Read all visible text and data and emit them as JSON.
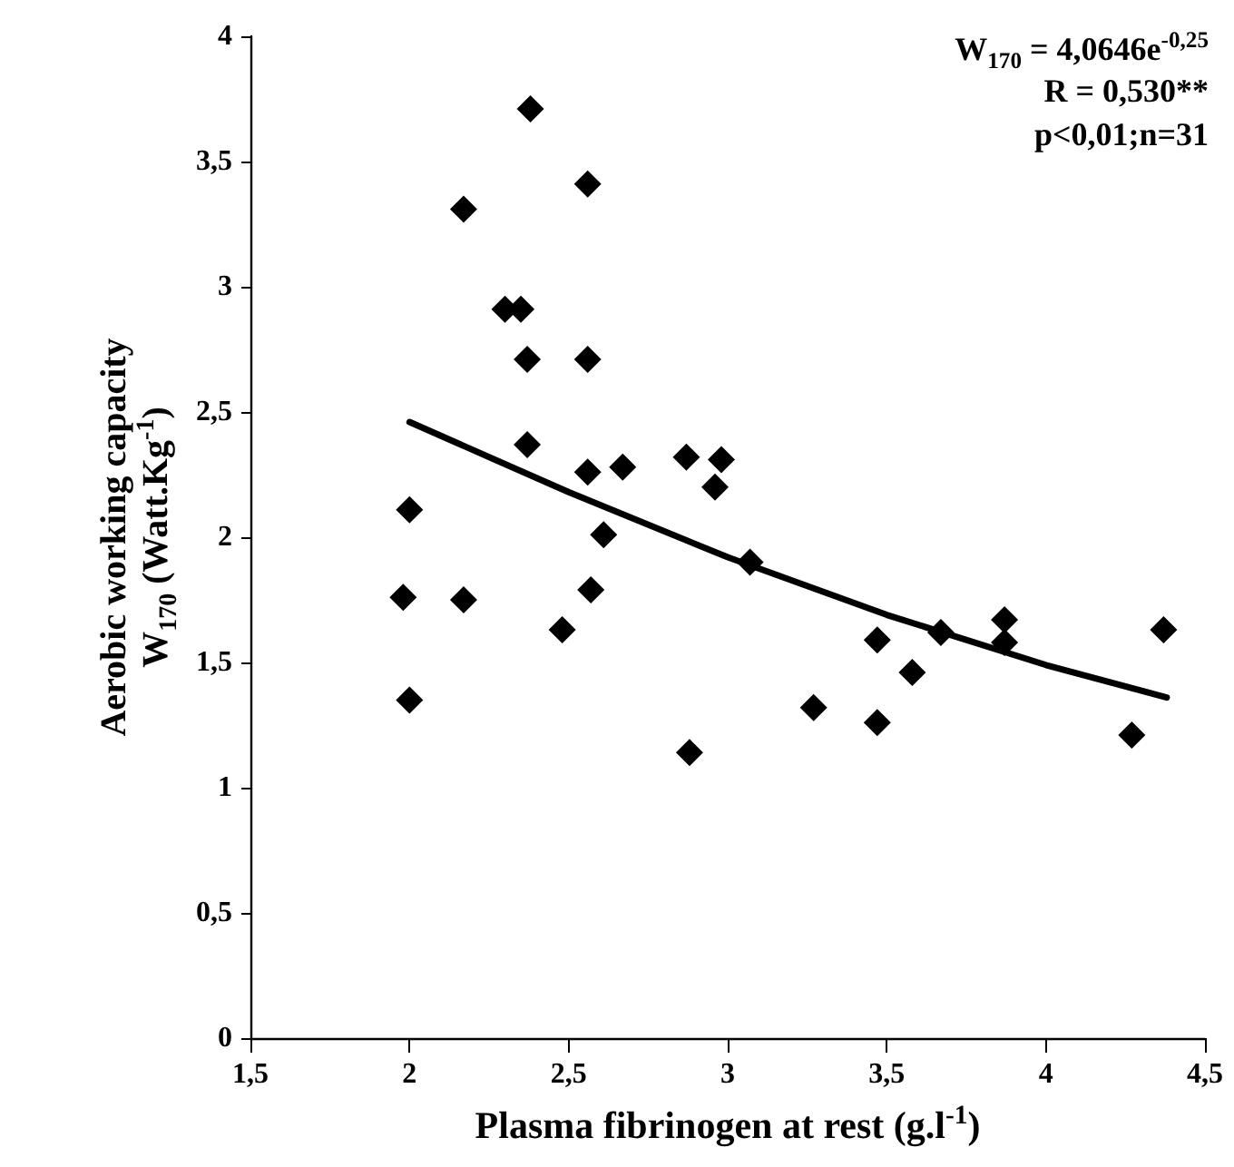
{
  "chart_data": {
    "type": "scatter",
    "xlabel": "Plasma fibrinogen at rest (g.l$^{-1}$)",
    "ylabel": "Aerobic working capacity\nW$_{170}$ (Watt.Kg$^{-1}$)",
    "annotations": [
      "W$_{170}$ = 4,0646e$^{-0,25}$\nR = 0,530**\np<0,01;n=31"
    ],
    "xlim": [
      1.5,
      4.5
    ],
    "xticks": [
      {
        "value": 1.5,
        "label": "1,5"
      },
      2,
      {
        "value": 2.5,
        "label": "2,5"
      },
      3,
      {
        "value": 3.5,
        "label": "3,5"
      },
      4,
      {
        "value": 4.5,
        "label": "4,5"
      }
    ],
    "ylim": [
      0,
      4
    ],
    "yticks": [
      0,
      {
        "value": 0.5,
        "label": "0,5"
      },
      1,
      {
        "value": 1.5,
        "label": "1,5"
      },
      2,
      {
        "value": 2.5,
        "label": "2,5"
      },
      3,
      {
        "value": 3.5,
        "label": "3,5"
      },
      4
    ],
    "grid": false,
    "marker": "diamond",
    "series": [
      {
        "color": "#000000",
        "x": [
          2.0,
          1.98,
          2.0,
          2.17,
          2.17,
          2.3,
          2.35,
          2.38,
          2.37,
          2.37,
          2.48,
          2.56,
          2.56,
          2.56,
          2.57,
          2.61,
          2.67,
          2.87,
          2.88,
          2.96,
          2.98,
          3.07,
          3.27,
          3.47,
          3.47,
          3.58,
          3.67,
          3.87,
          3.87,
          4.27,
          4.37
        ],
        "values": [
          2.11,
          1.76,
          1.35,
          3.31,
          1.75,
          2.91,
          2.91,
          3.71,
          2.71,
          2.37,
          1.63,
          3.41,
          2.71,
          2.26,
          1.79,
          2.01,
          2.28,
          2.32,
          1.14,
          2.2,
          2.31,
          1.9,
          1.32,
          1.59,
          1.26,
          1.46,
          1.62,
          1.67,
          1.58,
          1.21,
          1.63
        ]
      },
      {
        "type": "line",
        "color": "#000000",
        "marker": "none",
        "line_style": "solid",
        "x": [
          2.0,
          2.5,
          3.0,
          3.5,
          4.0,
          4.38
        ],
        "values": [
          2.46,
          2.18,
          1.92,
          1.69,
          1.49,
          1.36
        ]
      }
    ]
  }
}
